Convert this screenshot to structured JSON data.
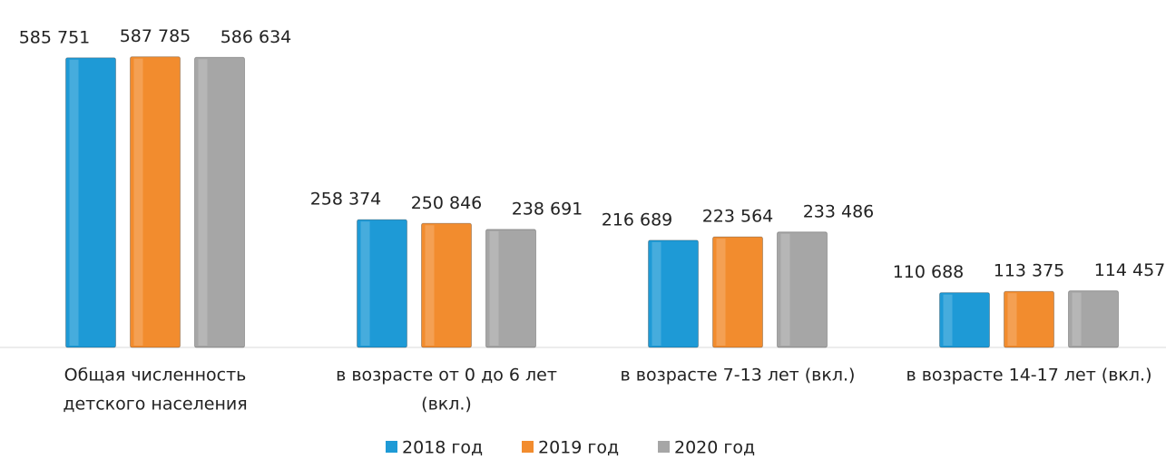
{
  "chart_data": {
    "type": "bar",
    "categories": [
      [
        "Общая численность",
        "детского населения"
      ],
      [
        "в возрасте от 0 до 6 лет",
        "(вкл.)"
      ],
      [
        "в возрасте 7-13 лет (вкл.)"
      ],
      [
        "в возрасте 14-17 лет (вкл.)"
      ]
    ],
    "series": [
      {
        "name": "2018 год",
        "color": "#1e9ad6",
        "values": [
          585751,
          258374,
          216689,
          110688
        ],
        "value_labels": [
          "585 751",
          "258 374",
          "216 689",
          "110 688"
        ]
      },
      {
        "name": "2019 год",
        "color": "#f28c2e",
        "values": [
          587785,
          250846,
          223564,
          113375
        ],
        "value_labels": [
          "587 785",
          "250 846",
          "223 564",
          "113 375"
        ]
      },
      {
        "name": "2020 год",
        "color": "#a6a6a6",
        "values": [
          586634,
          238691,
          233486,
          114457
        ],
        "value_labels": [
          "586 634",
          "238 691",
          "233 486",
          "114 457"
        ]
      }
    ],
    "ylim": [
      0,
      600000
    ],
    "legend": "bottom"
  }
}
